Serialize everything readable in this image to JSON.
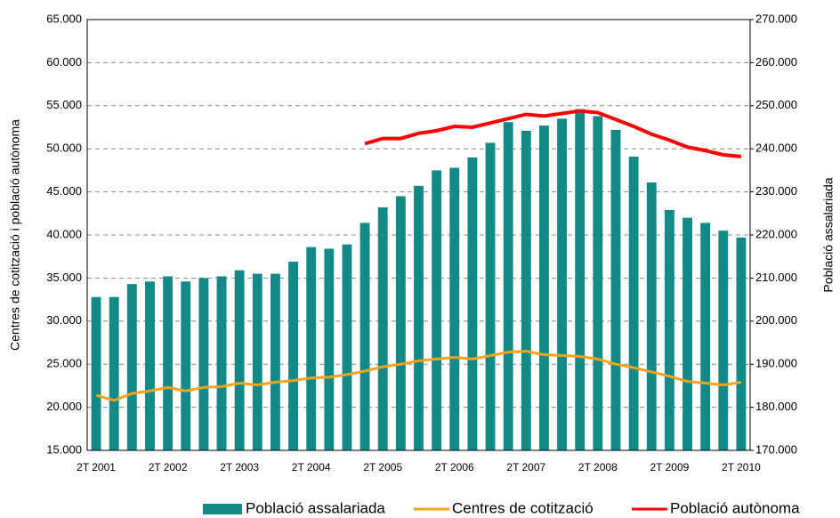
{
  "chart_data": {
    "type": "bar",
    "y_label": "Centres de cotització i població autònoma",
    "y2_label": "Població assalariada",
    "categories": [
      "2T 2001",
      null,
      null,
      null,
      "2T 2002",
      null,
      null,
      null,
      "2T 2003",
      null,
      null,
      null,
      "2T 2004",
      null,
      null,
      null,
      "2T 2005",
      null,
      null,
      null,
      "2T 2006",
      null,
      null,
      null,
      "2T 2007",
      null,
      null,
      null,
      "2T 2008",
      null,
      null,
      null,
      "2T 2009",
      null,
      null,
      null,
      "2T 2010"
    ],
    "series": [
      {
        "name": "Població assalariada",
        "type": "bar",
        "axis": "y2",
        "color": "#138a87",
        "values": [
          205600,
          205600,
          208600,
          209200,
          210400,
          209200,
          210000,
          210400,
          211800,
          211000,
          211000,
          213800,
          217200,
          216800,
          217800,
          222800,
          226400,
          229000,
          231400,
          235000,
          235600,
          238000,
          241400,
          246200,
          244200,
          245400,
          247000,
          249200,
          247600,
          244400,
          238200,
          232200,
          225800,
          224000,
          222800,
          221000,
          219400
        ]
      },
      {
        "name": "Centres de cotització",
        "type": "line",
        "color": "#f7a21b",
        "values": [
          21400,
          20800,
          21600,
          21900,
          22300,
          21900,
          22300,
          22400,
          22800,
          22600,
          22900,
          23100,
          23400,
          23500,
          23800,
          24200,
          24700,
          25000,
          25400,
          25600,
          25800,
          25600,
          26000,
          26400,
          26500,
          26100,
          26000,
          25900,
          25600,
          25000,
          24600,
          24100,
          23600,
          23000,
          22800,
          22600,
          22900
        ]
      },
      {
        "name": "Població autònoma",
        "type": "line",
        "color": "#ff0000",
        "values": [
          null,
          null,
          null,
          null,
          null,
          null,
          null,
          null,
          null,
          null,
          null,
          null,
          null,
          null,
          null,
          50600,
          51200,
          51200,
          51800,
          52100,
          52600,
          52500,
          53000,
          53500,
          54000,
          53800,
          54100,
          54400,
          54200,
          53400,
          52600,
          51700,
          51000,
          50200,
          49800,
          49300,
          49100
        ]
      }
    ],
    "ylim": [
      15000,
      65000
    ],
    "yticks": [
      {
        "value": 15000,
        "label": "15.000"
      },
      {
        "value": 20000,
        "label": "20.000"
      },
      {
        "value": 25000,
        "label": "25.000"
      },
      {
        "value": 30000,
        "label": "30.000"
      },
      {
        "value": 35000,
        "label": "35.000"
      },
      {
        "value": 40000,
        "label": "40.000"
      },
      {
        "value": 45000,
        "label": "45.000"
      },
      {
        "value": 50000,
        "label": "50.000"
      },
      {
        "value": 55000,
        "label": "55.000"
      },
      {
        "value": 60000,
        "label": "60.000"
      },
      {
        "value": 65000,
        "label": "65.000"
      }
    ],
    "y2lim": [
      170000,
      270000
    ],
    "y2ticks": [
      {
        "value": 170000,
        "label": "170.000"
      },
      {
        "value": 180000,
        "label": "180.000"
      },
      {
        "value": 190000,
        "label": "190.000"
      },
      {
        "value": 200000,
        "label": "200.000"
      },
      {
        "value": 210000,
        "label": "210.000"
      },
      {
        "value": 220000,
        "label": "220.000"
      },
      {
        "value": 230000,
        "label": "230.000"
      },
      {
        "value": 240000,
        "label": "240.000"
      },
      {
        "value": 250000,
        "label": "250.000"
      },
      {
        "value": 260000,
        "label": "260.000"
      },
      {
        "value": 270000,
        "label": "270.000"
      }
    ],
    "grid": true,
    "legend": "bottom-right"
  }
}
